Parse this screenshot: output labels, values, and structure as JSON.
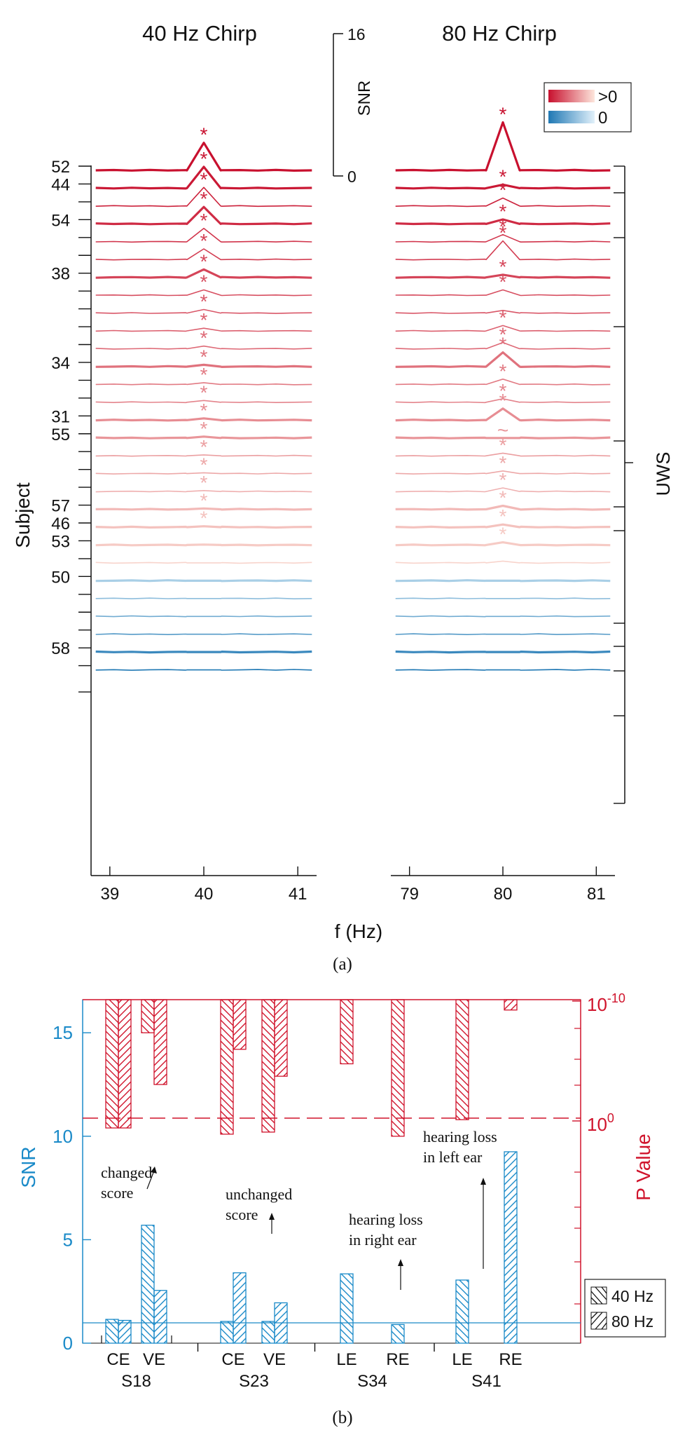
{
  "colors": {
    "red_dark": "#c8102e",
    "red_light": "#fbe0d6",
    "blue_light": "#c4e0f0",
    "blue_dark": "#1f78b4",
    "snr_axis": "#1a8ac8",
    "p_axis": "#d0142c"
  },
  "chart_data": [
    {
      "type": "line",
      "panel_label": "(a)",
      "panels": [
        {
          "title": "40 Hz Chirp",
          "x_ticks": [
            "39",
            "40",
            "41"
          ],
          "xlim": [
            38.8,
            41.2
          ],
          "x_center": 40
        },
        {
          "title": "80 Hz Chirp",
          "x_ticks": [
            "79",
            "80",
            "81"
          ],
          "xlim": [
            78.8,
            81.2
          ],
          "x_center": 80
        }
      ],
      "xlabel": "f (Hz)",
      "ylabel": "Subject",
      "snr_scale": {
        "label": "SNR",
        "ticks": [
          "16",
          "0"
        ],
        "range": [
          0,
          16
        ]
      },
      "legend": [
        {
          "label": ">0",
          "gradient": "red"
        },
        {
          "label": "0",
          "gradient": "blue"
        }
      ],
      "group_bracket": "UWS",
      "subject_labels": [
        "52",
        "44",
        "54",
        "38",
        "34",
        "31",
        "55",
        "57",
        "46",
        "53",
        "50",
        "58"
      ],
      "row_tick_count": 30,
      "rows": [
        {
          "subject": "52",
          "thick": true,
          "peak40": 3.1,
          "sig40": true,
          "peak80": 5.4,
          "sig80": "*",
          "tint": 1.0
        },
        {
          "subject": "44",
          "thick": true,
          "peak40": 2.4,
          "sig40": true,
          "peak80": 0.4,
          "sig80": "*",
          "tint": 0.97
        },
        {
          "subject": "",
          "thick": false,
          "peak40": 2.1,
          "sig40": true,
          "peak80": 0.9,
          "sig80": "*",
          "tint": 0.94
        },
        {
          "subject": "54",
          "thick": true,
          "peak40": 1.9,
          "sig40": true,
          "peak80": 0.5,
          "sig80": "*",
          "tint": 0.91
        },
        {
          "subject": "",
          "thick": false,
          "peak40": 1.5,
          "sig40": true,
          "peak80": 0.8,
          "sig80": "*",
          "tint": 0.88
        },
        {
          "subject": "",
          "thick": false,
          "peak40": 1.2,
          "sig40": true,
          "peak80": 2.1,
          "sig80": "*",
          "tint": 0.85
        },
        {
          "subject": "38",
          "thick": true,
          "peak40": 0.9,
          "sig40": true,
          "peak80": 0.3,
          "sig80": "*",
          "tint": 0.82
        },
        {
          "subject": "",
          "thick": false,
          "peak40": 0.6,
          "sig40": true,
          "peak80": 0.6,
          "sig80": "*",
          "tint": 0.79
        },
        {
          "subject": "",
          "thick": false,
          "peak40": 0.4,
          "sig40": true,
          "peak80": 0.3,
          "sig80": "",
          "tint": 0.76
        },
        {
          "subject": "",
          "thick": false,
          "peak40": 0.3,
          "sig40": true,
          "peak80": 0.6,
          "sig80": "*",
          "tint": 0.73
        },
        {
          "subject": "",
          "thick": false,
          "peak40": 0.3,
          "sig40": true,
          "peak80": 0.7,
          "sig80": "*",
          "tint": 0.7
        },
        {
          "subject": "34",
          "thick": true,
          "peak40": 0.2,
          "sig40": true,
          "peak80": 1.6,
          "sig80": "*",
          "tint": 0.67
        },
        {
          "subject": "",
          "thick": false,
          "peak40": 0.2,
          "sig40": true,
          "peak80": 0.6,
          "sig80": "*",
          "tint": 0.64
        },
        {
          "subject": "",
          "thick": false,
          "peak40": 0.2,
          "sig40": true,
          "peak80": 0.4,
          "sig80": "*",
          "tint": 0.61
        },
        {
          "subject": "31",
          "thick": true,
          "peak40": 0.2,
          "sig40": true,
          "peak80": 1.3,
          "sig80": "*",
          "tint": 0.58
        },
        {
          "subject": "55",
          "thick": true,
          "peak40": 0.15,
          "sig40": true,
          "peak80": 0.0,
          "sig80": "~",
          "tint": 0.55
        },
        {
          "subject": "",
          "thick": false,
          "peak40": 0.1,
          "sig40": true,
          "peak80": 0.3,
          "sig80": "*",
          "tint": 0.52
        },
        {
          "subject": "",
          "thick": false,
          "peak40": 0.1,
          "sig40": true,
          "peak80": 0.3,
          "sig80": "*",
          "tint": 0.49
        },
        {
          "subject": "",
          "thick": false,
          "peak40": 0.1,
          "sig40": true,
          "peak80": 0.4,
          "sig80": "*",
          "tint": 0.46
        },
        {
          "subject": "57",
          "thick": true,
          "peak40": 0.1,
          "sig40": true,
          "peak80": 0.4,
          "sig80": "*",
          "tint": 0.43
        },
        {
          "subject": "46",
          "thick": true,
          "peak40": 0.1,
          "sig40": true,
          "peak80": 0.3,
          "sig80": "*",
          "tint": 0.4
        },
        {
          "subject": "53",
          "thick": true,
          "peak40": 0.05,
          "sig40": false,
          "peak80": 0.3,
          "sig80": "*",
          "tint": 0.37
        },
        {
          "subject": "",
          "thick": false,
          "peak40": 0.0,
          "sig40": false,
          "peak80": 0.2,
          "sig80": "",
          "tint": 0.34
        },
        {
          "subject": "50",
          "thick": true,
          "peak40": 0.0,
          "sig40": false,
          "peak80": 0.0,
          "sig80": "",
          "tint": -0.5
        },
        {
          "subject": "",
          "thick": false,
          "peak40": 0.0,
          "sig40": false,
          "peak80": 0.0,
          "sig80": "",
          "tint": -0.6
        },
        {
          "subject": "",
          "thick": false,
          "peak40": 0.0,
          "sig40": false,
          "peak80": 0.0,
          "sig80": "",
          "tint": -0.7
        },
        {
          "subject": "",
          "thick": false,
          "peak40": 0.0,
          "sig40": false,
          "peak80": 0.0,
          "sig80": "",
          "tint": -0.8
        },
        {
          "subject": "58",
          "thick": true,
          "peak40": 0.0,
          "sig40": false,
          "peak80": 0.0,
          "sig80": "",
          "tint": -0.9
        },
        {
          "subject": "",
          "thick": false,
          "peak40": 0.0,
          "sig40": false,
          "peak80": 0.0,
          "sig80": "",
          "tint": -1.0
        }
      ]
    },
    {
      "type": "bar",
      "panel_label": "(b)",
      "ylabel": "SNR",
      "ylabel_right": "P Value",
      "ylim": [
        0,
        16.6
      ],
      "y_ticks": [
        "0",
        "5",
        "10",
        "15"
      ],
      "p_ticks": [
        {
          "base": "10",
          "exp": "-10"
        },
        {
          "base": "10",
          "exp": "0"
        }
      ],
      "legend": [
        "40 Hz",
        "80 Hz"
      ],
      "snr_threshold": 1,
      "groups": [
        {
          "subject": "S18",
          "conditions": [
            {
              "label": "CE",
              "snr40": 1.15,
              "snr80": 1.1,
              "p40_top": 10.4,
              "p80_top": 10.4
            },
            {
              "label": "VE",
              "snr40": 5.7,
              "snr80": 2.55,
              "p40_top": 15.0,
              "p80_top": 12.5
            }
          ]
        },
        {
          "subject": "S23",
          "conditions": [
            {
              "label": "CE",
              "snr40": 1.05,
              "snr80": 3.4,
              "p40_top": 10.1,
              "p80_top": 14.2
            },
            {
              "label": "VE",
              "snr40": 1.05,
              "snr80": 1.95,
              "p40_top": 10.2,
              "p80_top": 12.9
            }
          ]
        },
        {
          "subject": "S34",
          "conditions": [
            {
              "label": "LE",
              "snr40": 3.35,
              "snr80": null,
              "p40_top": 13.5,
              "p80_top": null
            },
            {
              "label": "RE",
              "snr40": 0.9,
              "snr80": null,
              "p40_top": 10.0,
              "p80_top": null
            }
          ]
        },
        {
          "subject": "S41",
          "conditions": [
            {
              "label": "LE",
              "snr40": 3.05,
              "snr80": null,
              "p40_top": 10.8,
              "p80_top": null
            },
            {
              "label": "RE",
              "snr40": null,
              "snr80": 9.25,
              "p40_top": null,
              "p80_top": 16.1
            }
          ]
        }
      ],
      "p_threshold": 10.75,
      "annotations": [
        "changed score",
        "unchanged score",
        "hearing loss in right ear",
        "hearing loss in left ear"
      ]
    }
  ]
}
